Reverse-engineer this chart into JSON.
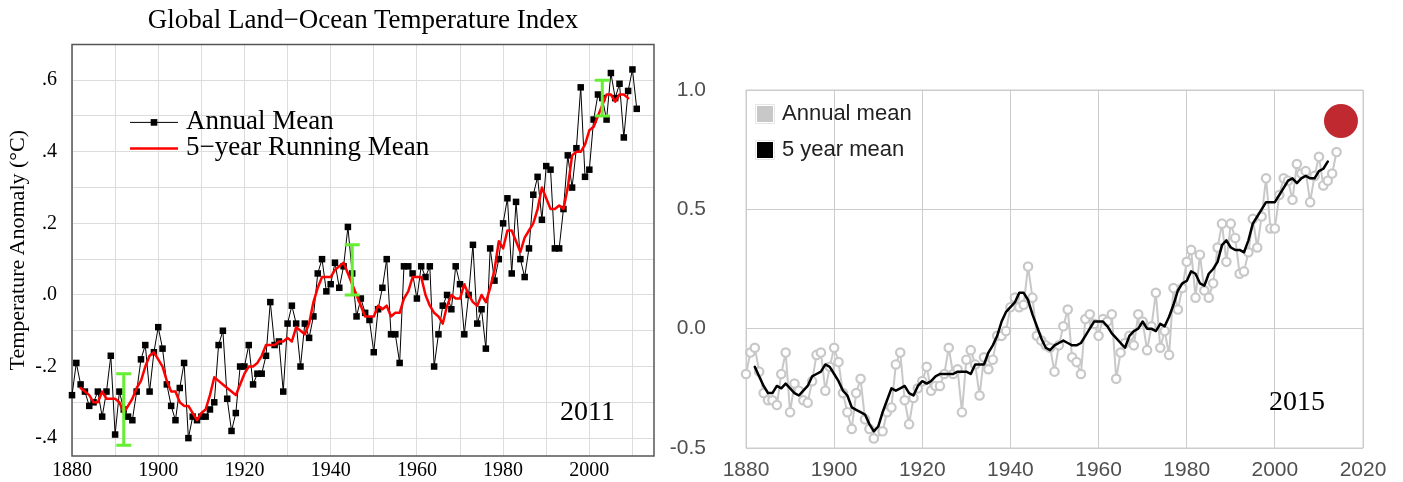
{
  "chart_data": [
    {
      "type": "line",
      "title": "Global Land−Ocean Temperature Index",
      "ylabel": "Temperature Anomaly (°C)",
      "xlim": [
        1880,
        2015
      ],
      "ylim": [
        -0.45,
        0.7
      ],
      "xticks": [
        1880,
        {
          "value": 1890,
          "label": null
        },
        1900,
        {
          "value": 1910,
          "label": null
        },
        1920,
        {
          "value": 1930,
          "label": null
        },
        1940,
        {
          "value": 1950,
          "label": null
        },
        1960,
        {
          "value": 1970,
          "label": null
        },
        1980,
        {
          "value": 1990,
          "label": null
        },
        2000,
        {
          "value": 2010,
          "label": null
        }
      ],
      "yticks": [
        {
          "value": -0.4,
          "label": "-.4"
        },
        {
          "value": -0.3,
          "label": null
        },
        {
          "value": -0.2,
          "label": "-.2"
        },
        {
          "value": -0.1,
          "label": null
        },
        {
          "value": 0,
          "label": ".0"
        },
        {
          "value": 0.1,
          "label": null
        },
        {
          "value": 0.2,
          "label": ".2"
        },
        {
          "value": 0.3,
          "label": null
        },
        {
          "value": 0.4,
          "label": ".4"
        },
        {
          "value": 0.5,
          "label": null
        },
        {
          "value": 0.6,
          "label": ".6"
        }
      ],
      "grid": true,
      "legend": "top left",
      "annotations": [
        "2011"
      ],
      "x": [
        1880,
        1881,
        1882,
        1883,
        1884,
        1885,
        1886,
        1887,
        1888,
        1889,
        1890,
        1891,
        1892,
        1893,
        1894,
        1895,
        1896,
        1897,
        1898,
        1899,
        1900,
        1901,
        1902,
        1903,
        1904,
        1905,
        1906,
        1907,
        1908,
        1909,
        1910,
        1911,
        1912,
        1913,
        1914,
        1915,
        1916,
        1917,
        1918,
        1919,
        1920,
        1921,
        1922,
        1923,
        1924,
        1925,
        1926,
        1927,
        1928,
        1929,
        1930,
        1931,
        1932,
        1933,
        1934,
        1935,
        1936,
        1937,
        1938,
        1939,
        1940,
        1941,
        1942,
        1943,
        1944,
        1945,
        1946,
        1947,
        1948,
        1949,
        1950,
        1951,
        1952,
        1953,
        1954,
        1955,
        1956,
        1957,
        1958,
        1959,
        1960,
        1961,
        1962,
        1963,
        1964,
        1965,
        1966,
        1967,
        1968,
        1969,
        1970,
        1971,
        1972,
        1973,
        1974,
        1975,
        1976,
        1977,
        1978,
        1979,
        1980,
        1981,
        1982,
        1983,
        1984,
        1985,
        1986,
        1987,
        1988,
        1989,
        1990,
        1991,
        1992,
        1993,
        1994,
        1995,
        1996,
        1997,
        1998,
        1999,
        2000,
        2001,
        2002,
        2003,
        2004,
        2005,
        2006,
        2007,
        2008,
        2009,
        2010,
        2011
      ],
      "series": [
        {
          "name": "Annual Mean",
          "color": "#000000",
          "marker": "square",
          "values": [
            -0.28,
            -0.19,
            -0.25,
            -0.27,
            -0.31,
            -0.3,
            -0.27,
            -0.34,
            -0.27,
            -0.17,
            -0.39,
            -0.27,
            -0.32,
            -0.34,
            -0.35,
            -0.27,
            -0.18,
            -0.14,
            -0.27,
            -0.16,
            -0.09,
            -0.15,
            -0.25,
            -0.31,
            -0.35,
            -0.26,
            -0.19,
            -0.4,
            -0.34,
            -0.35,
            -0.34,
            -0.34,
            -0.32,
            -0.3,
            -0.14,
            -0.1,
            -0.29,
            -0.38,
            -0.33,
            -0.2,
            -0.2,
            -0.14,
            -0.25,
            -0.22,
            -0.22,
            -0.17,
            -0.02,
            -0.14,
            -0.13,
            -0.27,
            -0.08,
            -0.03,
            -0.08,
            -0.2,
            -0.08,
            -0.12,
            -0.06,
            0.06,
            0.1,
            0.01,
            0.03,
            0.09,
            0.02,
            0.08,
            0.19,
            0.06,
            -0.06,
            -0.01,
            -0.05,
            -0.07,
            -0.16,
            -0.04,
            0.02,
            0.1,
            -0.11,
            -0.11,
            -0.19,
            0.08,
            0.08,
            0.06,
            -0.01,
            0.08,
            0.05,
            0.08,
            -0.2,
            -0.11,
            -0.03,
            0.0,
            -0.04,
            0.08,
            0.03,
            -0.11,
            0.0,
            0.14,
            -0.08,
            -0.04,
            -0.15,
            0.13,
            0.04,
            0.1,
            0.2,
            0.27,
            0.06,
            0.26,
            0.1,
            0.05,
            0.13,
            0.28,
            0.33,
            0.21,
            0.36,
            0.35,
            0.13,
            0.13,
            0.24,
            0.39,
            0.3,
            0.41,
            0.58,
            0.33,
            0.35,
            0.49,
            0.56,
            0.55,
            0.49,
            0.62,
            0.55,
            0.59,
            0.44,
            0.57,
            0.63,
            0.52
          ],
          "errors": [
            null,
            null,
            null,
            null,
            null,
            null,
            null,
            null,
            null,
            null,
            null,
            null,
            [
              -0.42,
              -0.22
            ],
            null,
            null,
            null,
            null,
            null,
            null,
            null,
            null,
            null,
            null,
            null,
            null,
            null,
            null,
            null,
            null,
            null,
            null,
            null,
            null,
            null,
            null,
            null,
            null,
            null,
            null,
            null,
            null,
            null,
            null,
            null,
            null,
            null,
            null,
            null,
            null,
            null,
            null,
            null,
            null,
            null,
            null,
            null,
            null,
            null,
            null,
            null,
            null,
            null,
            null,
            null,
            null,
            [
              0.0,
              0.14
            ],
            null,
            null,
            null,
            null,
            null,
            null,
            null,
            null,
            null,
            null,
            null,
            null,
            null,
            null,
            null,
            null,
            null,
            null,
            null,
            null,
            null,
            null,
            null,
            null,
            null,
            null,
            null,
            null,
            null,
            null,
            null,
            null,
            null,
            null,
            null,
            null,
            null,
            null,
            null,
            null,
            null,
            null,
            null,
            null,
            null,
            null,
            null,
            null,
            null,
            null,
            null,
            null,
            null,
            null,
            null,
            null,
            null,
            [
              0.5,
              0.6
            ],
            null,
            null,
            null,
            null,
            null,
            null,
            null,
            null
          ]
        },
        {
          "name": "5−year Running Mean",
          "color": "#ff0000",
          "marker": "none",
          "x": [
            1882,
            1883,
            1884,
            1885,
            1886,
            1887,
            1888,
            1889,
            1890,
            1891,
            1892,
            1893,
            1894,
            1895,
            1896,
            1897,
            1898,
            1899,
            1900,
            1901,
            1902,
            1903,
            1904,
            1905,
            1906,
            1907,
            1908,
            1909,
            1910,
            1911,
            1912,
            1913,
            1914,
            1915,
            1916,
            1917,
            1918,
            1919,
            1920,
            1921,
            1922,
            1923,
            1924,
            1925,
            1926,
            1927,
            1928,
            1929,
            1930,
            1931,
            1932,
            1933,
            1934,
            1935,
            1936,
            1937,
            1938,
            1939,
            1940,
            1941,
            1942,
            1943,
            1944,
            1945,
            1946,
            1947,
            1948,
            1949,
            1950,
            1951,
            1952,
            1953,
            1954,
            1955,
            1956,
            1957,
            1958,
            1959,
            1960,
            1961,
            1962,
            1963,
            1964,
            1965,
            1966,
            1967,
            1968,
            1969,
            1970,
            1971,
            1972,
            1973,
            1974,
            1975,
            1976,
            1977,
            1978,
            1979,
            1980,
            1981,
            1982,
            1983,
            1984,
            1985,
            1986,
            1987,
            1988,
            1989,
            1990,
            1991,
            1992,
            1993,
            1994,
            1995,
            1996,
            1997,
            1998,
            1999,
            2000,
            2001,
            2002,
            2003,
            2004,
            2005,
            2006,
            2007,
            2008,
            2009
          ],
          "values": [
            -0.26,
            -0.27,
            -0.28,
            -0.3,
            -0.3,
            -0.27,
            -0.29,
            -0.29,
            -0.29,
            -0.3,
            -0.33,
            -0.31,
            -0.29,
            -0.26,
            -0.24,
            -0.2,
            -0.17,
            -0.16,
            -0.18,
            -0.2,
            -0.24,
            -0.27,
            -0.27,
            -0.3,
            -0.31,
            -0.31,
            -0.33,
            -0.35,
            -0.33,
            -0.32,
            -0.28,
            -0.23,
            -0.24,
            -0.25,
            -0.26,
            -0.27,
            -0.28,
            -0.25,
            -0.22,
            -0.2,
            -0.2,
            -0.19,
            -0.17,
            -0.14,
            -0.14,
            -0.14,
            -0.13,
            -0.13,
            -0.12,
            -0.13,
            -0.09,
            -0.1,
            -0.11,
            -0.08,
            -0.02,
            0.02,
            0.05,
            0.05,
            0.05,
            0.07,
            0.08,
            0.09,
            0.06,
            0.03,
            0.0,
            -0.03,
            -0.06,
            -0.06,
            -0.06,
            -0.03,
            -0.04,
            -0.03,
            -0.06,
            -0.05,
            -0.05,
            -0.01,
            0.01,
            0.05,
            0.05,
            0.05,
            0.0,
            -0.03,
            -0.05,
            -0.06,
            -0.08,
            -0.03,
            0.0,
            -0.01,
            -0.01,
            0.03,
            0.0,
            -0.02,
            -0.03,
            0.0,
            -0.02,
            0.02,
            0.07,
            0.15,
            0.13,
            0.18,
            0.18,
            0.15,
            0.12,
            0.16,
            0.18,
            0.2,
            0.24,
            0.3,
            0.27,
            0.24,
            0.24,
            0.25,
            0.24,
            0.3,
            0.39,
            0.4,
            0.4,
            0.42,
            0.46,
            0.47,
            0.5,
            0.53,
            0.56,
            0.56,
            0.54,
            0.56,
            0.56,
            0.55
          ]
        }
      ]
    },
    {
      "type": "line",
      "xlim": [
        1880,
        2020
      ],
      "ylim": [
        -0.5,
        1.0
      ],
      "xticks": [
        1880,
        1900,
        1920,
        1940,
        1960,
        1980,
        2000,
        2020
      ],
      "yticks": [
        -0.5,
        {
          "value": 0,
          "label": "0.0"
        },
        0.5,
        {
          "value": 1,
          "label": "1.0"
        }
      ],
      "grid": true,
      "legend": "top left",
      "annotations": [
        "2015"
      ],
      "x": [
        1880,
        1881,
        1882,
        1883,
        1884,
        1885,
        1886,
        1887,
        1888,
        1889,
        1890,
        1891,
        1892,
        1893,
        1894,
        1895,
        1896,
        1897,
        1898,
        1899,
        1900,
        1901,
        1902,
        1903,
        1904,
        1905,
        1906,
        1907,
        1908,
        1909,
        1910,
        1911,
        1912,
        1913,
        1914,
        1915,
        1916,
        1917,
        1918,
        1919,
        1920,
        1921,
        1922,
        1923,
        1924,
        1925,
        1926,
        1927,
        1928,
        1929,
        1930,
        1931,
        1932,
        1933,
        1934,
        1935,
        1936,
        1937,
        1938,
        1939,
        1940,
        1941,
        1942,
        1943,
        1944,
        1945,
        1946,
        1947,
        1948,
        1949,
        1950,
        1951,
        1952,
        1953,
        1954,
        1955,
        1956,
        1957,
        1958,
        1959,
        1960,
        1961,
        1962,
        1963,
        1964,
        1965,
        1966,
        1967,
        1968,
        1969,
        1970,
        1971,
        1972,
        1973,
        1974,
        1975,
        1976,
        1977,
        1978,
        1979,
        1980,
        1981,
        1982,
        1983,
        1984,
        1985,
        1986,
        1987,
        1988,
        1989,
        1990,
        1991,
        1992,
        1993,
        1994,
        1995,
        1996,
        1997,
        1998,
        1999,
        2000,
        2001,
        2002,
        2003,
        2004,
        2005,
        2006,
        2007,
        2008,
        2009,
        2010,
        2011,
        2012,
        2013,
        2014
      ],
      "series": [
        {
          "name": "Annual mean",
          "color": "#c8c8c8",
          "marker": "circle",
          "values": [
            -0.19,
            -0.1,
            -0.08,
            -0.18,
            -0.27,
            -0.3,
            -0.3,
            -0.32,
            -0.19,
            -0.1,
            -0.35,
            -0.23,
            -0.26,
            -0.3,
            -0.31,
            -0.22,
            -0.11,
            -0.1,
            -0.26,
            -0.16,
            -0.08,
            -0.14,
            -0.27,
            -0.35,
            -0.42,
            -0.27,
            -0.21,
            -0.38,
            -0.42,
            -0.46,
            -0.43,
            -0.43,
            -0.35,
            -0.33,
            -0.15,
            -0.1,
            -0.3,
            -0.4,
            -0.29,
            -0.25,
            -0.22,
            -0.16,
            -0.26,
            -0.24,
            -0.24,
            -0.19,
            -0.08,
            -0.19,
            -0.17,
            -0.35,
            -0.13,
            -0.09,
            -0.15,
            -0.28,
            -0.12,
            -0.17,
            -0.13,
            -0.03,
            -0.03,
            -0.01,
            0.09,
            0.13,
            0.09,
            0.1,
            0.26,
            0.13,
            -0.03,
            -0.05,
            -0.07,
            -0.08,
            -0.18,
            -0.07,
            0.01,
            0.08,
            -0.12,
            -0.14,
            -0.19,
            0.04,
            0.06,
            0.02,
            -0.03,
            0.04,
            0.03,
            0.06,
            -0.21,
            -0.1,
            -0.06,
            -0.03,
            -0.07,
            0.06,
            0.03,
            -0.09,
            0.01,
            0.15,
            -0.08,
            -0.01,
            -0.11,
            0.17,
            0.08,
            0.17,
            0.28,
            0.33,
            0.13,
            0.31,
            0.16,
            0.13,
            0.19,
            0.34,
            0.44,
            0.28,
            0.44,
            0.38,
            0.23,
            0.24,
            0.32,
            0.46,
            0.34,
            0.47,
            0.63,
            0.42,
            0.42,
            0.56,
            0.63,
            0.62,
            0.54,
            0.69,
            0.65,
            0.66,
            0.53,
            0.64,
            0.72,
            0.6,
            0.62,
            0.65,
            0.74
          ]
        },
        {
          "name": "5 year mean",
          "color": "#000000",
          "marker": "none",
          "x": [
            1882,
            1883,
            1884,
            1885,
            1886,
            1887,
            1888,
            1889,
            1890,
            1891,
            1892,
            1893,
            1894,
            1895,
            1896,
            1897,
            1898,
            1899,
            1900,
            1901,
            1902,
            1903,
            1904,
            1905,
            1906,
            1907,
            1908,
            1909,
            1910,
            1911,
            1912,
            1913,
            1914,
            1915,
            1916,
            1917,
            1918,
            1919,
            1920,
            1921,
            1922,
            1923,
            1924,
            1925,
            1926,
            1927,
            1928,
            1929,
            1930,
            1931,
            1932,
            1933,
            1934,
            1935,
            1936,
            1937,
            1938,
            1939,
            1940,
            1941,
            1942,
            1943,
            1944,
            1945,
            1946,
            1947,
            1948,
            1949,
            1950,
            1951,
            1952,
            1953,
            1954,
            1955,
            1956,
            1957,
            1958,
            1959,
            1960,
            1961,
            1962,
            1963,
            1964,
            1965,
            1966,
            1967,
            1968,
            1969,
            1970,
            1971,
            1972,
            1973,
            1974,
            1975,
            1976,
            1977,
            1978,
            1979,
            1980,
            1981,
            1982,
            1983,
            1984,
            1985,
            1986,
            1987,
            1988,
            1989,
            1990,
            1991,
            1992,
            1993,
            1994,
            1995,
            1996,
            1997,
            1998,
            1999,
            2000,
            2001,
            2002,
            2003,
            2004,
            2005,
            2006,
            2007,
            2008,
            2009,
            2010,
            2011,
            2012
          ],
          "values": [
            -0.16,
            -0.2,
            -0.24,
            -0.27,
            -0.27,
            -0.24,
            -0.25,
            -0.23,
            -0.25,
            -0.27,
            -0.28,
            -0.26,
            -0.24,
            -0.2,
            -0.19,
            -0.18,
            -0.15,
            -0.16,
            -0.19,
            -0.22,
            -0.26,
            -0.28,
            -0.33,
            -0.34,
            -0.35,
            -0.36,
            -0.4,
            -0.43,
            -0.41,
            -0.35,
            -0.3,
            -0.25,
            -0.26,
            -0.25,
            -0.24,
            -0.27,
            -0.28,
            -0.24,
            -0.22,
            -0.23,
            -0.22,
            -0.2,
            -0.19,
            -0.19,
            -0.19,
            -0.19,
            -0.18,
            -0.18,
            -0.18,
            -0.19,
            -0.15,
            -0.15,
            -0.15,
            -0.1,
            -0.07,
            -0.03,
            0.03,
            0.07,
            0.09,
            0.11,
            0.15,
            0.15,
            0.12,
            0.06,
            0.01,
            -0.04,
            -0.08,
            -0.09,
            -0.07,
            -0.06,
            -0.05,
            -0.06,
            -0.07,
            -0.07,
            -0.06,
            -0.03,
            0.0,
            0.03,
            0.03,
            0.03,
            0.01,
            -0.02,
            -0.04,
            -0.06,
            -0.08,
            -0.03,
            -0.01,
            0.0,
            0.03,
            0.0,
            0.0,
            -0.01,
            0.02,
            0.01,
            0.05,
            0.1,
            0.16,
            0.19,
            0.2,
            0.24,
            0.23,
            0.19,
            0.18,
            0.23,
            0.25,
            0.28,
            0.35,
            0.37,
            0.34,
            0.33,
            0.33,
            0.32,
            0.37,
            0.44,
            0.47,
            0.5,
            0.53,
            0.53,
            0.53,
            0.56,
            0.59,
            0.62,
            0.63,
            0.61,
            0.63,
            0.64,
            0.63,
            0.63,
            0.66,
            0.67,
            0.7
          ]
        },
        {
          "type": "scatter",
          "color": "#c0292f",
          "marker": "circle",
          "x": [
            2015
          ],
          "values": [
            0.87
          ]
        }
      ]
    }
  ]
}
